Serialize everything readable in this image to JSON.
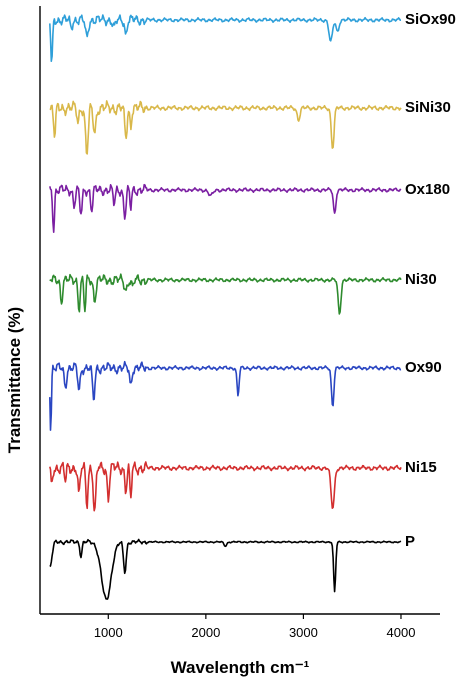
{
  "chart_data": {
    "type": "line",
    "xlabel": "Wavelength cm⁻¹",
    "ylabel": "Transmittance (%)",
    "xlim": [
      300,
      4400
    ],
    "x_ticks": [
      1000,
      2000,
      3000,
      4000
    ],
    "x_tick_labels": [
      "1000",
      "2000",
      "3000",
      "4000"
    ],
    "grid": false,
    "series": [
      {
        "name": "SiOx90",
        "color": "#2e9fd9",
        "baseline": 20,
        "noise": 5,
        "features": [
          [
            420,
            45,
            25
          ],
          [
            620,
            8,
            30
          ],
          [
            780,
            18,
            40
          ],
          [
            1060,
            8,
            40
          ],
          [
            1180,
            15,
            30
          ],
          [
            3280,
            22,
            50
          ],
          [
            3350,
            12,
            40
          ]
        ]
      },
      {
        "name": "SiNi30",
        "color": "#d9b84a",
        "baseline": 108,
        "noise": 6,
        "features": [
          [
            450,
            28,
            30
          ],
          [
            690,
            14,
            30
          ],
          [
            780,
            46,
            40
          ],
          [
            860,
            24,
            40
          ],
          [
            1180,
            30,
            35
          ],
          [
            1230,
            18,
            25
          ],
          [
            2950,
            12,
            40
          ],
          [
            3300,
            40,
            40
          ]
        ]
      },
      {
        "name": "Ox180",
        "color": "#7b1fa2",
        "baseline": 190,
        "noise": 5,
        "features": [
          [
            440,
            40,
            25
          ],
          [
            650,
            16,
            30
          ],
          [
            720,
            24,
            35
          ],
          [
            830,
            20,
            30
          ],
          [
            1060,
            14,
            30
          ],
          [
            1170,
            26,
            35
          ],
          [
            1230,
            18,
            25
          ],
          [
            2050,
            6,
            60
          ],
          [
            3320,
            24,
            35
          ]
        ]
      },
      {
        "name": "Ni30",
        "color": "#2e8b2e",
        "baseline": 280,
        "noise": 5,
        "features": [
          [
            520,
            22,
            30
          ],
          [
            700,
            28,
            30
          ],
          [
            760,
            32,
            25
          ],
          [
            860,
            20,
            35
          ],
          [
            1180,
            10,
            40
          ],
          [
            1250,
            8,
            30
          ],
          [
            3370,
            34,
            40
          ]
        ]
      },
      {
        "name": "Ox90",
        "color": "#2a46c2",
        "baseline": 368,
        "noise": 5,
        "features": [
          [
            410,
            62,
            20
          ],
          [
            560,
            18,
            35
          ],
          [
            700,
            22,
            35
          ],
          [
            850,
            32,
            35
          ],
          [
            1230,
            18,
            30
          ],
          [
            2330,
            28,
            30
          ],
          [
            3300,
            38,
            35
          ]
        ]
      },
      {
        "name": "Ni15",
        "color": "#d32f2f",
        "baseline": 468,
        "noise": 6,
        "features": [
          [
            420,
            18,
            25
          ],
          [
            560,
            14,
            25
          ],
          [
            700,
            28,
            30
          ],
          [
            780,
            36,
            30
          ],
          [
            860,
            46,
            35
          ],
          [
            1000,
            30,
            30
          ],
          [
            1180,
            22,
            30
          ],
          [
            1230,
            32,
            25
          ],
          [
            3300,
            40,
            50
          ]
        ]
      },
      {
        "name": "P",
        "color": "#000000",
        "baseline": 542,
        "noise": 2,
        "features": [
          [
            400,
            26,
            60
          ],
          [
            720,
            14,
            30
          ],
          [
            980,
            58,
            140
          ],
          [
            1170,
            30,
            40
          ],
          [
            2200,
            4,
            40
          ],
          [
            3320,
            50,
            30
          ]
        ]
      }
    ]
  }
}
